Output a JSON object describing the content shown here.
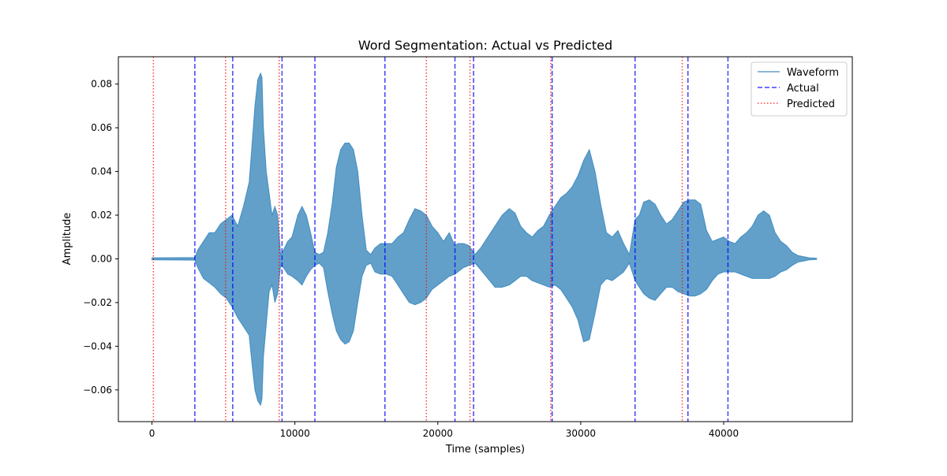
{
  "chart_data": {
    "type": "line",
    "title": "Word Segmentation: Actual vs Predicted",
    "xlabel": "Time (samples)",
    "ylabel": "Amplitude",
    "xlim": [
      -2350,
      49000
    ],
    "ylim": [
      -0.0745,
      0.0925
    ],
    "x_ticks": [
      0,
      10000,
      20000,
      30000,
      40000
    ],
    "x_tick_labels": [
      "0",
      "10000",
      "20000",
      "30000",
      "40000"
    ],
    "y_ticks": [
      -0.06,
      -0.04,
      -0.02,
      0.0,
      0.02,
      0.04,
      0.06,
      0.08
    ],
    "y_tick_labels": [
      "−0.06",
      "−0.04",
      "−0.02",
      "0.00",
      "0.02",
      "0.04",
      "0.06",
      "0.08"
    ],
    "grid": false,
    "legend_position": "top-right",
    "colors": {
      "waveform": "#1f77b4",
      "actual": "#0000ff",
      "predicted": "#ff0000"
    },
    "series": [
      {
        "name": "Waveform",
        "kind": "envelope",
        "x": [
          0,
          3000,
          3200,
          3600,
          4000,
          4400,
          4800,
          5200,
          5600,
          6000,
          6400,
          6800,
          7000,
          7200,
          7400,
          7600,
          7700,
          7800,
          8000,
          8200,
          8400,
          8600,
          8800,
          9000,
          9200,
          9500,
          9800,
          10200,
          10500,
          10800,
          11100,
          11400,
          11700,
          12000,
          12300,
          12600,
          12900,
          13200,
          13500,
          13800,
          14100,
          14400,
          14700,
          15000,
          15300,
          15600,
          16000,
          16400,
          16800,
          17200,
          17600,
          18000,
          18400,
          18800,
          19200,
          19600,
          20000,
          20400,
          20800,
          21200,
          21400,
          21800,
          22200,
          22600,
          23000,
          23500,
          24000,
          24500,
          25000,
          25400,
          25800,
          26200,
          26600,
          27000,
          27400,
          27800,
          28200,
          28600,
          29000,
          29400,
          29800,
          30200,
          30600,
          31000,
          31400,
          31800,
          32200,
          32600,
          33000,
          33400,
          33800,
          34100,
          34400,
          34800,
          35200,
          35600,
          36000,
          36400,
          36800,
          37200,
          37600,
          38000,
          38400,
          38800,
          39200,
          39600,
          40000,
          40400,
          40800,
          41200,
          41600,
          42000,
          42400,
          42800,
          43200,
          43600,
          44000,
          44400,
          44800,
          45200,
          45600,
          46000,
          46500
        ],
        "upper": [
          0.0005,
          0.0006,
          0.004,
          0.008,
          0.012,
          0.012,
          0.016,
          0.018,
          0.02,
          0.015,
          0.024,
          0.035,
          0.052,
          0.07,
          0.082,
          0.085,
          0.083,
          0.06,
          0.04,
          0.03,
          0.02,
          0.024,
          0.02,
          0.002,
          0.004,
          0.008,
          0.01,
          0.02,
          0.024,
          0.02,
          0.012,
          0.003,
          0.002,
          0.003,
          0.012,
          0.025,
          0.042,
          0.05,
          0.053,
          0.053,
          0.05,
          0.04,
          0.02,
          0.004,
          0.002,
          0.005,
          0.007,
          0.007,
          0.007,
          0.01,
          0.012,
          0.018,
          0.023,
          0.022,
          0.02,
          0.015,
          0.012,
          0.008,
          0.012,
          0.006,
          0.007,
          0.007,
          0.006,
          0.002,
          0.005,
          0.01,
          0.015,
          0.02,
          0.023,
          0.021,
          0.015,
          0.012,
          0.01,
          0.013,
          0.015,
          0.02,
          0.024,
          0.028,
          0.03,
          0.033,
          0.038,
          0.045,
          0.05,
          0.04,
          0.025,
          0.012,
          0.01,
          0.013,
          0.007,
          0.002,
          0.018,
          0.02,
          0.026,
          0.027,
          0.025,
          0.02,
          0.016,
          0.018,
          0.022,
          0.026,
          0.027,
          0.027,
          0.025,
          0.013,
          0.008,
          0.009,
          0.01,
          0.008,
          0.007,
          0.01,
          0.012,
          0.015,
          0.02,
          0.022,
          0.02,
          0.012,
          0.008,
          0.006,
          0.003,
          0.0015,
          0.001,
          0.0005,
          0.0003
        ],
        "lower": [
          -0.0005,
          -0.0006,
          -0.004,
          -0.009,
          -0.011,
          -0.013,
          -0.016,
          -0.018,
          -0.022,
          -0.027,
          -0.031,
          -0.035,
          -0.048,
          -0.06,
          -0.065,
          -0.067,
          -0.064,
          -0.045,
          -0.03,
          -0.015,
          -0.012,
          -0.02,
          -0.016,
          -0.003,
          -0.004,
          -0.007,
          -0.008,
          -0.01,
          -0.012,
          -0.008,
          -0.005,
          -0.003,
          -0.002,
          -0.004,
          -0.015,
          -0.025,
          -0.033,
          -0.037,
          -0.039,
          -0.038,
          -0.033,
          -0.02,
          -0.008,
          -0.003,
          -0.002,
          -0.006,
          -0.007,
          -0.007,
          -0.008,
          -0.012,
          -0.016,
          -0.02,
          -0.021,
          -0.02,
          -0.018,
          -0.014,
          -0.012,
          -0.01,
          -0.008,
          -0.007,
          -0.006,
          -0.004,
          -0.003,
          -0.002,
          -0.005,
          -0.009,
          -0.013,
          -0.013,
          -0.012,
          -0.01,
          -0.008,
          -0.008,
          -0.01,
          -0.011,
          -0.012,
          -0.013,
          -0.012,
          -0.014,
          -0.018,
          -0.022,
          -0.028,
          -0.038,
          -0.037,
          -0.025,
          -0.012,
          -0.009,
          -0.01,
          -0.008,
          -0.006,
          -0.002,
          -0.01,
          -0.013,
          -0.016,
          -0.018,
          -0.019,
          -0.016,
          -0.013,
          -0.013,
          -0.015,
          -0.016,
          -0.017,
          -0.017,
          -0.016,
          -0.014,
          -0.01,
          -0.007,
          -0.006,
          -0.006,
          -0.006,
          -0.007,
          -0.008,
          -0.009,
          -0.009,
          -0.009,
          -0.009,
          -0.008,
          -0.006,
          -0.005,
          -0.003,
          -0.0015,
          -0.001,
          -0.0005,
          -0.0003
        ]
      },
      {
        "name": "Actual",
        "kind": "vlines",
        "x": [
          3000,
          5650,
          9100,
          11400,
          16300,
          21200,
          22500,
          28000,
          33800,
          37500,
          40300
        ]
      },
      {
        "name": "Predicted",
        "kind": "vlines",
        "x": [
          100,
          5150,
          8900,
          19200,
          22250,
          27900,
          37100
        ]
      }
    ]
  }
}
